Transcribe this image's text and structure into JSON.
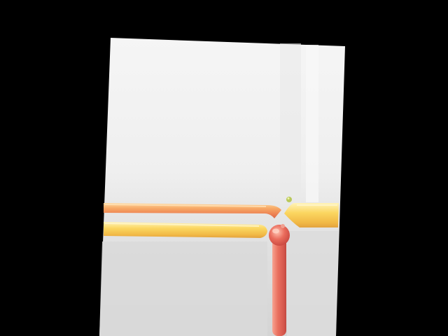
{
  "scene": {
    "background": "#000000",
    "panel_top": "#f3f3f3",
    "panel_mid": "#ececec",
    "panel_bottom": "#d6d6d6",
    "tube_orange": "#f0925a",
    "tube_yellow": "#f8c850",
    "tube_red": "#e0605a",
    "tube_highlight": "#ffe9a0"
  }
}
